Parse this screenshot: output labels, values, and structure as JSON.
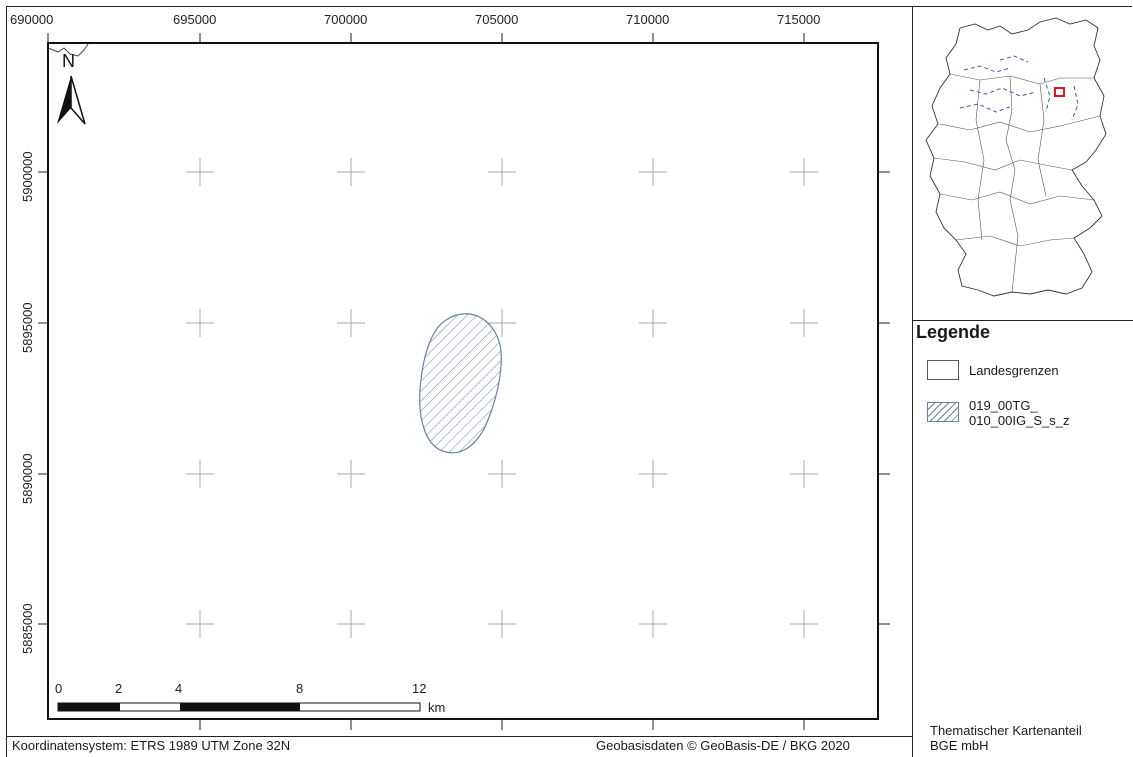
{
  "map": {
    "x_ticks": [
      "690000",
      "695000",
      "700000",
      "705000",
      "710000",
      "715000"
    ],
    "y_ticks": [
      "5900000",
      "5895000",
      "5890000",
      "5885000"
    ],
    "north_label": "N",
    "scalebar": {
      "labels": [
        "0",
        "2",
        "4",
        "8",
        "12"
      ],
      "unit": "km"
    },
    "feature_color": "#6a7fae"
  },
  "legend": {
    "title": "Legende",
    "items": [
      {
        "label": "Landesgrenzen"
      },
      {
        "label_line1": "019_00TG_",
        "label_line2": "010_00IG_S_s_z"
      }
    ]
  },
  "inset": {
    "highlight_color": "#e8131b",
    "water_color": "#3c5fa8"
  },
  "footer": {
    "crs": "Koordinatensystem: ETRS 1989 UTM Zone 32N",
    "source": "Geobasisdaten © GeoBasis-DE / BKG 2020",
    "credit_line1": "Thematischer Kartenanteil",
    "credit_line2": "BGE mbH"
  }
}
